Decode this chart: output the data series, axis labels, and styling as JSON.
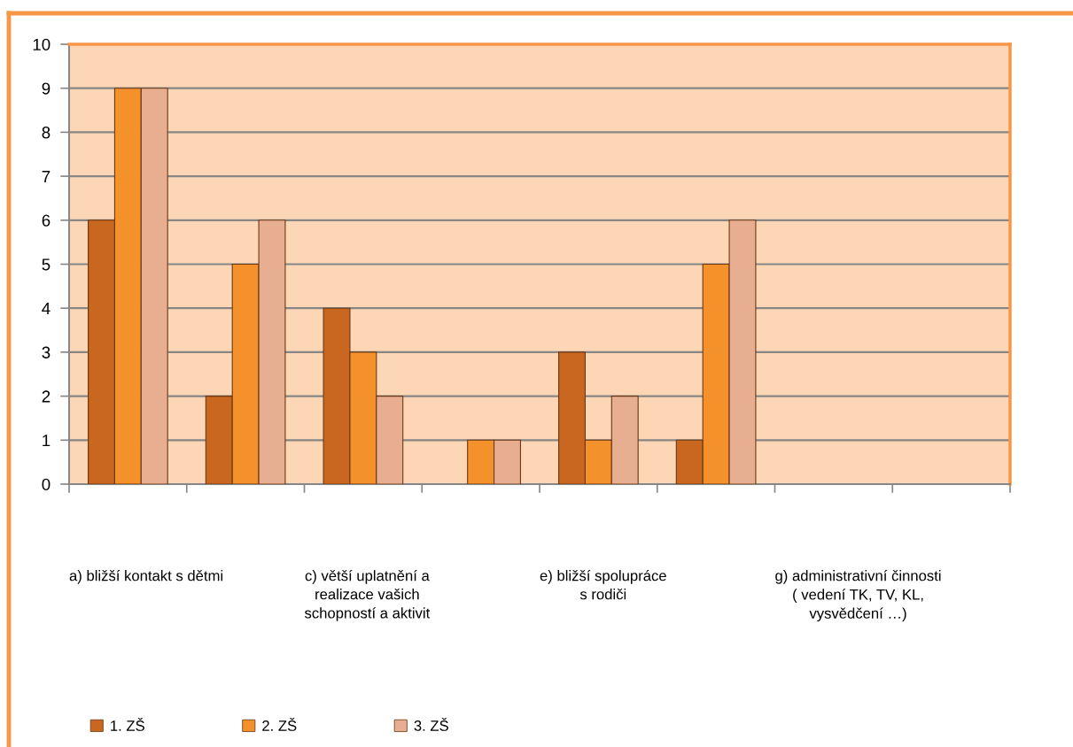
{
  "chart_data": {
    "type": "bar",
    "categories": [
      "a) bližší kontakt s dětmi",
      null,
      "c) větší uplatnění a\nrealizace vašich\nschopností a aktivit",
      null,
      "e) bližší spolupráce\ns rodiči",
      null,
      "g) administrativní činnosti\n( vedení TK, TV, KL,\nvysvědčení …)",
      null
    ],
    "series": [
      {
        "name": "1. ZŠ",
        "color": "#c9661f",
        "values": [
          6,
          2,
          4,
          null,
          3,
          1,
          null,
          null
        ]
      },
      {
        "name": "2. ZŠ",
        "color": "#f5912b",
        "values": [
          9,
          5,
          3,
          1,
          1,
          5,
          null,
          null
        ]
      },
      {
        "name": "3. ZŠ",
        "color": "#e8ae92",
        "values": [
          9,
          6,
          2,
          1,
          2,
          6,
          null,
          null
        ]
      }
    ],
    "ylim": [
      0,
      10
    ],
    "yticks": [
      0,
      1,
      2,
      3,
      4,
      5,
      6,
      7,
      8,
      9,
      10
    ],
    "grid": "y",
    "legend": "bottom left"
  }
}
